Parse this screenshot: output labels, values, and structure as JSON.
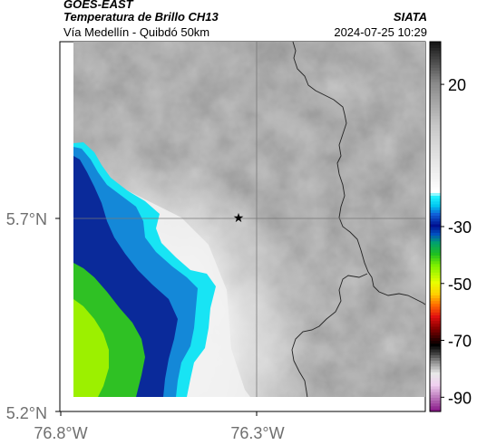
{
  "header": {
    "source": "GOES-EAST",
    "product": "Temperatura de Brillo CH13",
    "route": "Vía Medellín - Quibdó 50km",
    "organization": "SIATA",
    "timestamp": "2024-07-25 10:29"
  },
  "map": {
    "lon_range": [
      -76.8,
      -76.0
    ],
    "lat_range": [
      5.2,
      6.0
    ],
    "x_ticks": [
      {
        "value": -76.8,
        "label": "76.8°W"
      },
      {
        "value": -76.3,
        "label": "76.3°W"
      }
    ],
    "y_ticks": [
      {
        "value": 5.7,
        "label": "5.7°N"
      },
      {
        "value": 5.2,
        "label": "5.2°N"
      }
    ],
    "marker": {
      "lon": -76.34,
      "lat": 5.7,
      "symbol": "★"
    },
    "grid": true
  },
  "colorbar": {
    "ticks": [
      {
        "value": 20,
        "label": "20"
      },
      {
        "value": -30,
        "label": "-30"
      },
      {
        "value": -50,
        "label": "-50"
      },
      {
        "value": -70,
        "label": "-70"
      },
      {
        "value": -90,
        "label": "-90"
      }
    ],
    "range": [
      -95,
      35
    ]
  },
  "colors": {
    "cloud_blue": "#0a2a9a",
    "cloud_cyan": "#19e6f5",
    "cloud_green": "#2ec022",
    "cloud_yellow": "#b8f000",
    "background_gray": "#a9a9a9"
  }
}
